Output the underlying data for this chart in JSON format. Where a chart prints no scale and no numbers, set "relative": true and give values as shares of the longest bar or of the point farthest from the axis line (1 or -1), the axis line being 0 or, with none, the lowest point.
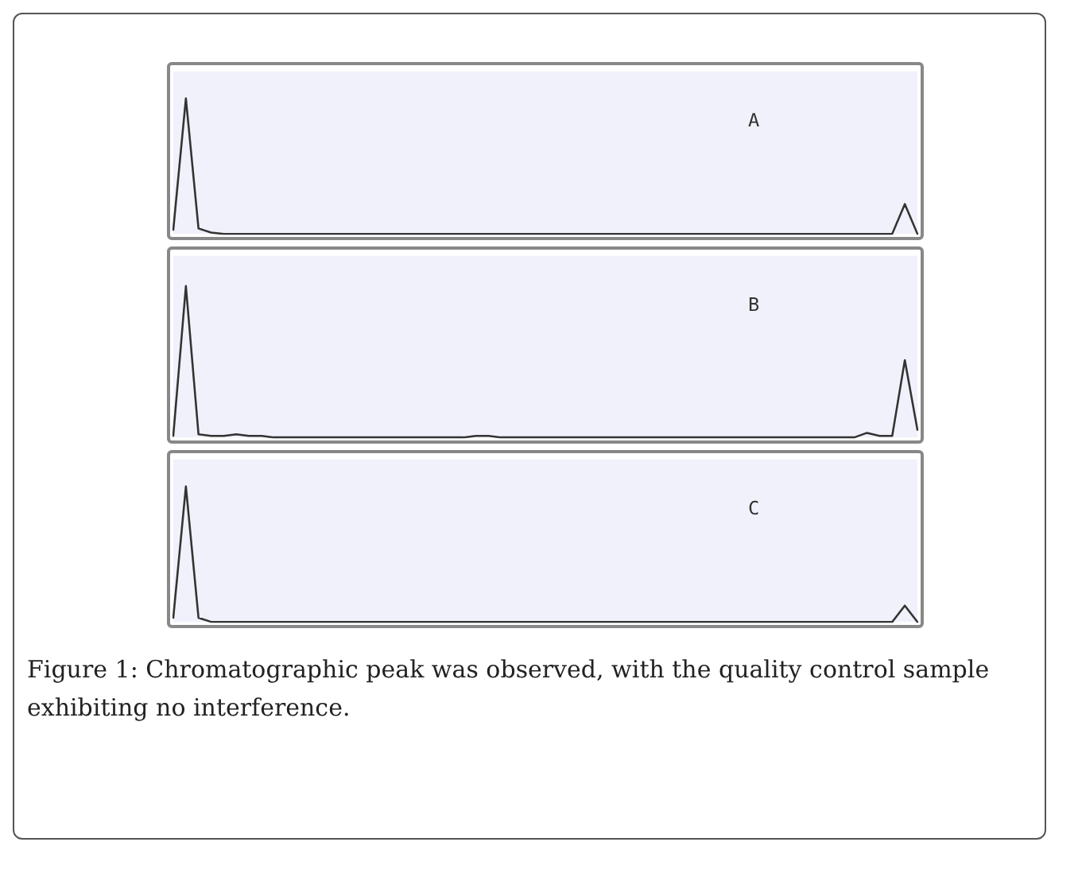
{
  "chart_data": [
    {
      "type": "line",
      "title": "A",
      "relative": true,
      "categories": [
        null,
        null,
        null,
        null,
        null,
        null,
        null,
        null,
        null,
        null,
        null,
        null,
        null,
        null,
        null,
        null,
        null,
        null,
        null,
        null,
        null,
        null,
        null,
        null,
        null,
        null,
        null,
        null,
        null,
        null,
        null,
        null,
        null,
        null,
        null,
        null,
        null,
        null,
        null,
        null,
        null,
        null,
        null,
        null,
        null,
        null,
        null,
        null,
        null,
        null,
        null,
        null,
        null,
        null,
        null,
        null,
        null,
        null,
        null,
        null
      ],
      "series": [
        {
          "color": "#333333",
          "values": [
            0.03,
            1,
            0.04,
            0.01,
            0,
            0,
            0,
            0,
            0,
            0,
            0,
            0,
            0,
            0,
            0,
            0,
            0,
            0,
            0,
            0,
            0,
            0,
            0,
            0,
            0,
            0,
            0,
            0,
            0,
            0,
            0,
            0,
            0,
            0,
            0,
            0,
            0,
            0,
            0,
            0,
            0,
            0,
            0,
            0,
            0,
            0,
            0,
            0,
            0,
            0,
            0,
            0,
            0,
            0,
            0,
            0,
            0,
            0,
            0.22,
            0
          ]
        }
      ]
    },
    {
      "type": "line",
      "title": "B",
      "relative": true,
      "categories": [
        null,
        null,
        null,
        null,
        null,
        null,
        null,
        null,
        null,
        null,
        null,
        null,
        null,
        null,
        null,
        null,
        null,
        null,
        null,
        null,
        null,
        null,
        null,
        null,
        null,
        null,
        null,
        null,
        null,
        null,
        null,
        null,
        null,
        null,
        null,
        null,
        null,
        null,
        null,
        null,
        null,
        null,
        null,
        null,
        null,
        null,
        null,
        null,
        null,
        null,
        null,
        null,
        null,
        null,
        null,
        null,
        null,
        null,
        null,
        null
      ],
      "series": [
        {
          "color": "#333333",
          "values": [
            0.01,
            1,
            0.02,
            0.01,
            0.01,
            0.02,
            0.01,
            0.01,
            0,
            0,
            0,
            0,
            0,
            0,
            0,
            0,
            0,
            0,
            0,
            0,
            0,
            0,
            0,
            0,
            0.01,
            0.01,
            0,
            0,
            0,
            0,
            0,
            0,
            0,
            0,
            0,
            0,
            0,
            0,
            0,
            0,
            0,
            0,
            0,
            0,
            0,
            0,
            0,
            0,
            0,
            0,
            0,
            0,
            0,
            0,
            0,
            0.03,
            0.01,
            0.01,
            0.51,
            0.05
          ]
        }
      ]
    },
    {
      "type": "line",
      "title": "C",
      "relative": true,
      "annotations": [
        "Figure 1: Chromatographic peak was observed, with the quality control sample exhibiting no interference."
      ],
      "categories": [
        null,
        null,
        null,
        null,
        null,
        null,
        null,
        null,
        null,
        null,
        null,
        null,
        null,
        null,
        null,
        null,
        null,
        null,
        null,
        null,
        null,
        null,
        null,
        null,
        null,
        null,
        null,
        null,
        null,
        null,
        null,
        null,
        null,
        null,
        null,
        null,
        null,
        null,
        null,
        null,
        null,
        null,
        null,
        null,
        null,
        null,
        null,
        null,
        null,
        null,
        null,
        null,
        null,
        null,
        null,
        null,
        null,
        null,
        null,
        null
      ],
      "series": [
        {
          "color": "#333333",
          "values": [
            0.03,
            1,
            0.03,
            0,
            0,
            0,
            0,
            0,
            0,
            0,
            0,
            0,
            0,
            0,
            0,
            0,
            0,
            0,
            0,
            0,
            0,
            0,
            0,
            0,
            0,
            0,
            0,
            0,
            0,
            0,
            0,
            0,
            0,
            0,
            0,
            0,
            0,
            0,
            0,
            0,
            0,
            0,
            0,
            0,
            0,
            0,
            0,
            0,
            0,
            0,
            0,
            0,
            0,
            0,
            0,
            0,
            0,
            0,
            0.12,
            0
          ]
        }
      ]
    }
  ]
}
